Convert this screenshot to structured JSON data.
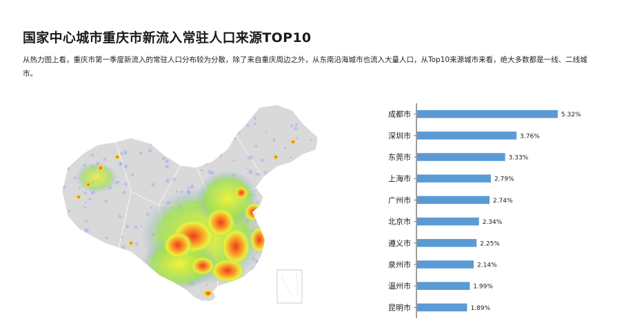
{
  "page": {
    "title": "国家中心城市重庆市新流入常驻人口来源TOP10",
    "description": "从热力图上看，重庆市第一季度新流入的常驻人口分布较为分散，除了来自重庆周边之外，从东南沿海城市也流入大量人口，从Top10来源城市来看，绝大多数都是一线、二线城市。"
  },
  "colors": {
    "bar": "#5b9bd5",
    "axis": "#7f7f7f",
    "map_base": "#d9d9d9",
    "heat_low": "#9aa8f0",
    "heat_mid": "#f2f23a",
    "heat_high": "#f23a1a"
  },
  "chart_data": {
    "type": "bar",
    "orientation": "horizontal",
    "categories": [
      "成都市",
      "深圳市",
      "东莞市",
      "上海市",
      "广州市",
      "北京市",
      "遵义市",
      "泉州市",
      "温州市",
      "昆明市"
    ],
    "values": [
      5.32,
      3.76,
      3.33,
      2.79,
      2.74,
      2.34,
      2.25,
      2.14,
      1.99,
      1.89
    ],
    "labels": [
      "5.32%",
      "3.76%",
      "3.33%",
      "2.79%",
      "2.74%",
      "2.34%",
      "2.25%",
      "2.14%",
      "1.99%",
      "1.89%"
    ],
    "unit": "%",
    "xlim": [
      0,
      6
    ],
    "grid": false,
    "legend": "none"
  }
}
